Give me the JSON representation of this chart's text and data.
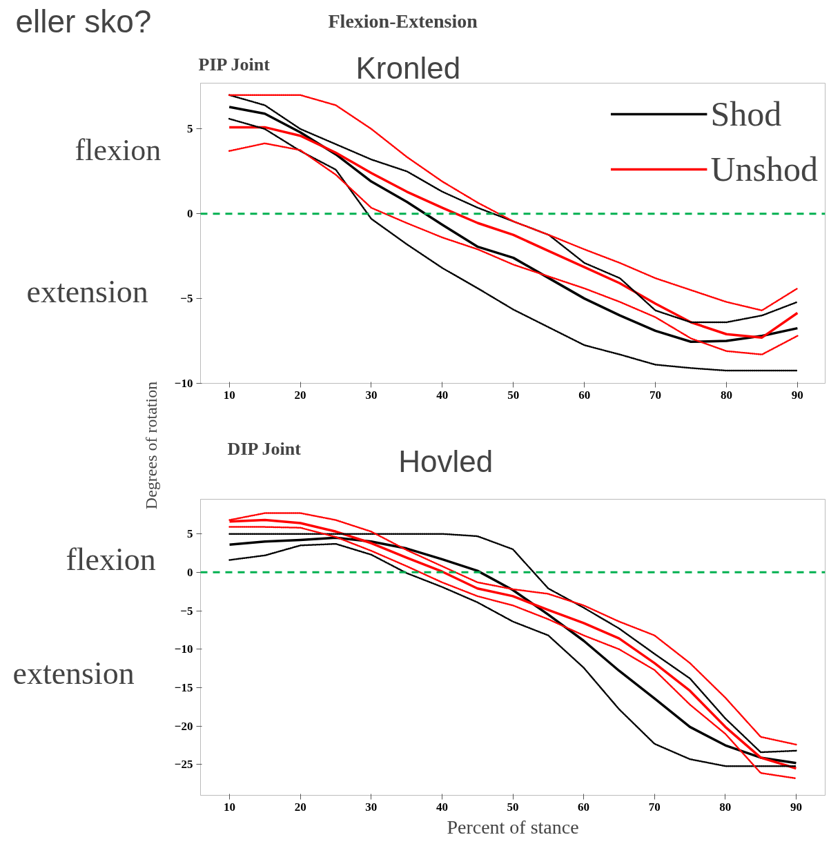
{
  "chart_data": [
    {
      "type": "line",
      "title": "PIP Joint",
      "annotations": [
        "eller sko?",
        "Flexion-Extension",
        "Kronled",
        "flexion",
        "extension"
      ],
      "x": [
        10,
        15,
        20,
        25,
        30,
        35,
        40,
        45,
        50,
        55,
        60,
        65,
        70,
        75,
        80,
        85,
        90
      ],
      "xlim": [
        5.95,
        93.9
      ],
      "ylim": [
        -10,
        7.7
      ],
      "xticks": [
        10,
        20,
        30,
        40,
        50,
        60,
        70,
        80,
        90
      ],
      "yticks": [
        -10,
        -5,
        0,
        5
      ],
      "legend": "top right",
      "ref_lines": [
        {
          "axis": "y",
          "value": 0,
          "color": "#00b050",
          "line_style": "dashed"
        }
      ],
      "series": [
        {
          "name": "Shod",
          "color": "#000000",
          "values": [
            6.3,
            5.9,
            4.8,
            3.5,
            1.9,
            0.7,
            -0.65,
            -1.95,
            -2.6,
            -3.8,
            -5.0,
            -6.0,
            -6.9,
            -7.55,
            -7.5,
            -7.2,
            -6.75
          ]
        },
        {
          "name": "Unshod",
          "color": "#ff0000",
          "values": [
            5.1,
            5.1,
            4.6,
            3.6,
            2.4,
            1.3,
            0.35,
            -0.55,
            -1.25,
            -2.2,
            -3.15,
            -4.1,
            -5.3,
            -6.4,
            -7.1,
            -7.3,
            -5.85
          ]
        },
        {
          "color": "#000000",
          "line_style": "dotted",
          "values": [
            7.0,
            6.4,
            5.0,
            4.1,
            3.2,
            2.5,
            1.3,
            0.35,
            -0.45,
            -1.25,
            -2.9,
            -3.8,
            -5.7,
            -6.4,
            -6.4,
            -6.0,
            -5.2
          ]
        },
        {
          "color": "#000000",
          "line_style": "dotted",
          "values": [
            5.6,
            5.0,
            3.7,
            2.6,
            -0.3,
            -1.8,
            -3.2,
            -4.4,
            -5.65,
            -6.7,
            -7.75,
            -8.3,
            -8.9,
            -9.1,
            -9.25,
            -9.25,
            -9.25
          ]
        },
        {
          "color": "#ff0000",
          "line_style": "dotted",
          "values": [
            7.0,
            7.0,
            7.0,
            6.4,
            5.0,
            3.35,
            1.9,
            0.65,
            -0.45,
            -1.25,
            -2.1,
            -2.9,
            -3.8,
            -4.5,
            -5.2,
            -5.7,
            -4.4
          ]
        },
        {
          "color": "#ff0000",
          "line_style": "dotted",
          "values": [
            3.7,
            4.15,
            3.75,
            2.3,
            0.35,
            -0.55,
            -1.4,
            -2.1,
            -3.0,
            -3.7,
            -4.4,
            -5.2,
            -6.1,
            -7.35,
            -8.1,
            -8.3,
            -7.2
          ]
        }
      ]
    },
    {
      "type": "line",
      "title": "DIP Joint",
      "annotations": [
        "Hovled",
        "flexion",
        "extension"
      ],
      "xlabel": "Percent of stance",
      "ylabel": "Degrees of rotation",
      "x": [
        10,
        15,
        20,
        25,
        30,
        35,
        40,
        45,
        50,
        55,
        60,
        65,
        70,
        75,
        80,
        85,
        90
      ],
      "xlim": [
        5.9,
        94.1
      ],
      "ylim": [
        -29,
        9.5
      ],
      "xticks": [
        10,
        20,
        30,
        40,
        50,
        60,
        70,
        80,
        90
      ],
      "yticks": [
        -25,
        -20,
        -15,
        -10,
        -5,
        0,
        5
      ],
      "ref_lines": [
        {
          "axis": "y",
          "value": 0,
          "color": "#00b050",
          "line_style": "dashed"
        }
      ],
      "series": [
        {
          "color": "#000000",
          "values": [
            3.6,
            4.0,
            4.2,
            4.5,
            4.0,
            3.1,
            1.7,
            0.2,
            -2.3,
            -5.5,
            -8.9,
            -12.8,
            -16.4,
            -20.1,
            -22.5,
            -24.1,
            -24.8
          ]
        },
        {
          "color": "#ff0000",
          "values": [
            6.6,
            6.8,
            6.4,
            5.3,
            3.8,
            1.9,
            0.1,
            -2.1,
            -3.1,
            -4.9,
            -6.6,
            -8.6,
            -11.8,
            -15.4,
            -20.1,
            -24.1,
            -25.5
          ]
        },
        {
          "color": "#000000",
          "line_style": "dotted",
          "values": [
            5.0,
            5.0,
            5.0,
            5.0,
            5.0,
            5.0,
            5.0,
            4.7,
            3.0,
            -2.1,
            -4.6,
            -7.3,
            -10.6,
            -13.8,
            -19.0,
            -23.4,
            -23.2
          ]
        },
        {
          "color": "#000000",
          "line_style": "dotted",
          "values": [
            1.6,
            2.2,
            3.5,
            3.7,
            2.3,
            -0.1,
            -1.9,
            -3.9,
            -6.4,
            -8.2,
            -12.4,
            -17.8,
            -22.3,
            -24.3,
            -25.2,
            -25.2,
            -25.2
          ]
        },
        {
          "color": "#ff0000",
          "line_style": "dotted",
          "values": [
            6.8,
            7.7,
            7.7,
            6.8,
            5.3,
            2.9,
            0.8,
            -1.3,
            -2.2,
            -2.8,
            -4.3,
            -6.4,
            -8.2,
            -11.8,
            -16.3,
            -21.4,
            -22.4
          ]
        },
        {
          "color": "#ff0000",
          "line_style": "dotted",
          "values": [
            5.9,
            5.9,
            5.8,
            4.6,
            2.8,
            0.8,
            -1.3,
            -3.1,
            -4.3,
            -6.1,
            -8.2,
            -10.0,
            -12.7,
            -17.2,
            -21.0,
            -26.1,
            -26.8
          ]
        }
      ]
    }
  ]
}
